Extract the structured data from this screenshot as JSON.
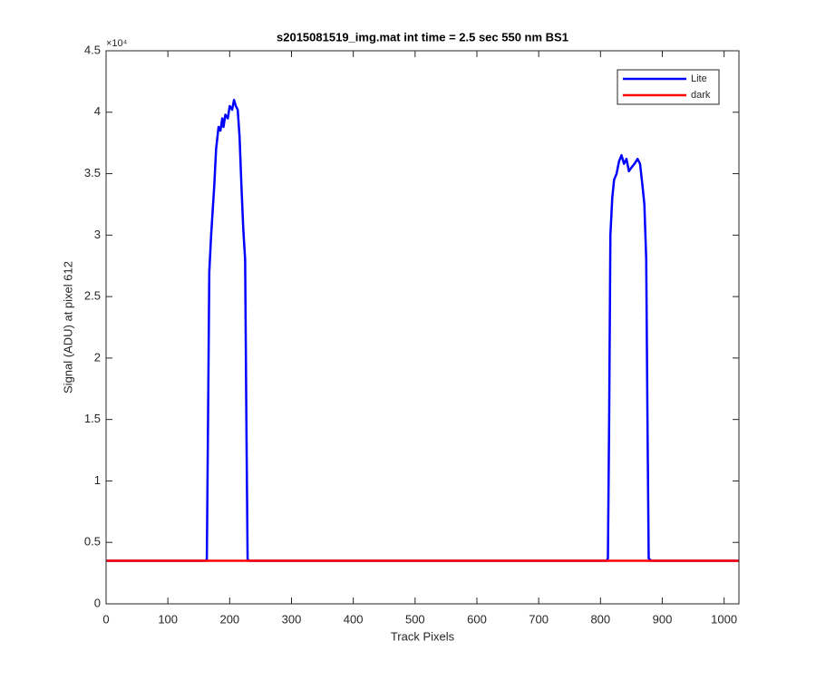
{
  "chart_data": {
    "type": "line",
    "title": "s2015081519_img.mat int time = 2.5 sec  550 nm BS1",
    "x_label": "Track Pixels",
    "y_label": "Signal (ADU) at pixel 612",
    "y_exponent_label": "×10⁴",
    "x": [
      1,
      160,
      163,
      165,
      167,
      170,
      175,
      178,
      182,
      185,
      188,
      190,
      193,
      197,
      200,
      204,
      207,
      210,
      213,
      216,
      219,
      222,
      225,
      227,
      229,
      232,
      500,
      810,
      812,
      814,
      816,
      819,
      822,
      826,
      830,
      834,
      838,
      842,
      846,
      850,
      855,
      860,
      864,
      868,
      871,
      874,
      876,
      878,
      882,
      1024
    ],
    "series": [
      {
        "name": "Lite",
        "color": "#0000ff",
        "values": [
          0.35,
          0.35,
          0.36,
          1.5,
          2.7,
          3.0,
          3.4,
          3.7,
          3.88,
          3.85,
          3.95,
          3.88,
          3.98,
          3.95,
          4.05,
          4.02,
          4.1,
          4.05,
          4.02,
          3.8,
          3.4,
          3.05,
          2.8,
          1.5,
          0.36,
          0.35,
          0.35,
          0.35,
          0.37,
          1.5,
          3.0,
          3.3,
          3.45,
          3.5,
          3.6,
          3.65,
          3.58,
          3.62,
          3.52,
          3.55,
          3.58,
          3.62,
          3.58,
          3.4,
          3.25,
          2.8,
          1.5,
          0.37,
          0.35,
          0.35
        ]
      },
      {
        "name": "dark",
        "color": "#ff0000",
        "values": [
          0.35,
          0.35,
          0.35,
          0.35,
          0.35,
          0.35,
          0.35,
          0.35,
          0.35,
          0.35,
          0.35,
          0.35,
          0.35,
          0.35,
          0.35,
          0.35,
          0.35,
          0.35,
          0.35,
          0.35,
          0.35,
          0.35,
          0.35,
          0.35,
          0.35,
          0.35,
          0.35,
          0.35,
          0.35,
          0.35,
          0.35,
          0.35,
          0.35,
          0.35,
          0.35,
          0.35,
          0.35,
          0.35,
          0.35,
          0.35,
          0.35,
          0.35,
          0.35,
          0.35,
          0.35,
          0.35,
          0.35,
          0.35,
          0.35,
          0.35
        ]
      }
    ],
    "xlim": [
      0,
      1024
    ],
    "xticks": [
      0,
      100,
      200,
      300,
      400,
      500,
      600,
      700,
      800,
      900,
      1000
    ],
    "ylim": [
      0,
      4.5
    ],
    "yticks": [
      0,
      0.5,
      1,
      1.5,
      2,
      2.5,
      3,
      3.5,
      4,
      4.5
    ],
    "grid": false,
    "legend": "upper right"
  }
}
